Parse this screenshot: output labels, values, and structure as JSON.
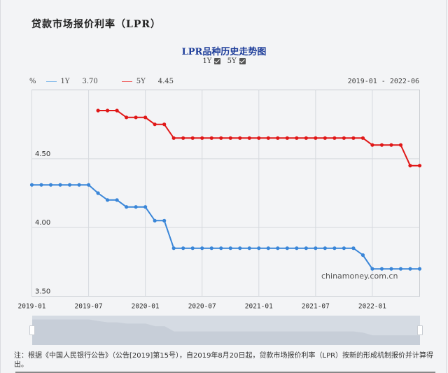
{
  "page": {
    "title": "贷款市场报价利率（LPR）"
  },
  "chart": {
    "title": "LPR品种历史走势图",
    "toggles": [
      {
        "label": "1Y",
        "checked": true
      },
      {
        "label": "5Y",
        "checked": true
      }
    ],
    "legend": {
      "unit": "%",
      "items": [
        {
          "name": "1Y",
          "value": "3.70",
          "color": "#3a86d8"
        },
        {
          "name": "5Y",
          "value": "4.45",
          "color": "#e01818"
        }
      ]
    },
    "date_range": "2019-01 - 2022-06",
    "watermark": "chinamoney.com.cn",
    "slider": {
      "start": "2019-01",
      "end": "2022-06"
    }
  },
  "chart_data": {
    "type": "line",
    "title": "LPR品种历史走势图",
    "xlabel": "",
    "ylabel": "%",
    "ylim": [
      3.5,
      5.0
    ],
    "yticks": [
      "3.50",
      "4.00",
      "4.50"
    ],
    "xticks": [
      "2019-01",
      "2019-07",
      "2020-01",
      "2020-07",
      "2021-01",
      "2021-07",
      "2022-01"
    ],
    "grid": true,
    "legend_position": "top-left",
    "x": [
      "2019-01",
      "2019-02",
      "2019-03",
      "2019-04",
      "2019-05",
      "2019-06",
      "2019-07",
      "2019-08",
      "2019-09",
      "2019-10",
      "2019-11",
      "2019-12",
      "2020-01",
      "2020-02",
      "2020-03",
      "2020-04",
      "2020-05",
      "2020-06",
      "2020-07",
      "2020-08",
      "2020-09",
      "2020-10",
      "2020-11",
      "2020-12",
      "2021-01",
      "2021-02",
      "2021-03",
      "2021-04",
      "2021-05",
      "2021-06",
      "2021-07",
      "2021-08",
      "2021-09",
      "2021-10",
      "2021-11",
      "2021-12",
      "2022-01",
      "2022-02",
      "2022-03",
      "2022-04",
      "2022-05",
      "2022-06"
    ],
    "series": [
      {
        "name": "1Y",
        "color": "#3a86d8",
        "values": [
          4.31,
          4.31,
          4.31,
          4.31,
          4.31,
          4.31,
          4.31,
          4.25,
          4.2,
          4.2,
          4.15,
          4.15,
          4.15,
          4.05,
          4.05,
          3.85,
          3.85,
          3.85,
          3.85,
          3.85,
          3.85,
          3.85,
          3.85,
          3.85,
          3.85,
          3.85,
          3.85,
          3.85,
          3.85,
          3.85,
          3.85,
          3.85,
          3.85,
          3.85,
          3.85,
          3.8,
          3.7,
          3.7,
          3.7,
          3.7,
          3.7,
          3.7
        ]
      },
      {
        "name": "5Y",
        "color": "#e01818",
        "values": [
          null,
          null,
          null,
          null,
          null,
          null,
          null,
          4.85,
          4.85,
          4.85,
          4.8,
          4.8,
          4.8,
          4.75,
          4.75,
          4.65,
          4.65,
          4.65,
          4.65,
          4.65,
          4.65,
          4.65,
          4.65,
          4.65,
          4.65,
          4.65,
          4.65,
          4.65,
          4.65,
          4.65,
          4.65,
          4.65,
          4.65,
          4.65,
          4.65,
          4.65,
          4.6,
          4.6,
          4.6,
          4.6,
          4.45,
          4.45
        ]
      }
    ]
  },
  "footnote": "注：根据《中国人民银行公告》（公告[2019]第15号），自2019年8月20日起，贷款市场报价利率（LPR）按新的形成机制报价并计算得出。"
}
